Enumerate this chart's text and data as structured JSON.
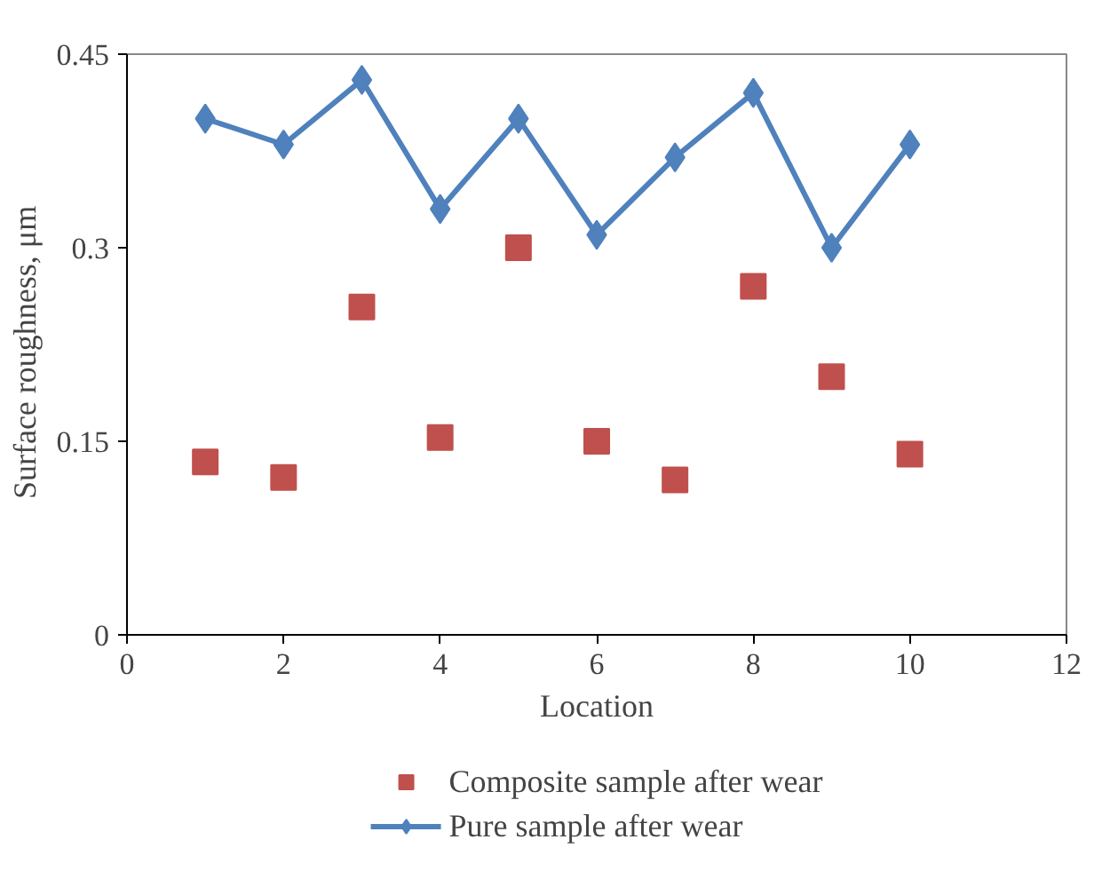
{
  "chart_data": {
    "type": "scatter",
    "xlabel": "Location",
    "ylabel": "Surface  roughness,  μm",
    "x": [
      1,
      2,
      3,
      4,
      5,
      6,
      7,
      8,
      9,
      10
    ],
    "series": [
      {
        "name": "Composite sample after wear",
        "marker": "square",
        "color": "#c0504d",
        "values": [
          0.134,
          0.122,
          0.254,
          0.153,
          0.3,
          0.15,
          0.12,
          0.27,
          0.2,
          0.14
        ]
      },
      {
        "name": "Pure sample after wear",
        "type": "line",
        "marker": "diamond",
        "color": "#4f81bd",
        "values": [
          0.4,
          0.38,
          0.43,
          0.33,
          0.4,
          0.31,
          0.37,
          0.42,
          0.3,
          0.38
        ]
      }
    ],
    "xlim": [
      0,
      12
    ],
    "xticks": [
      0,
      2,
      4,
      6,
      8,
      10,
      12
    ],
    "ylim": [
      0,
      0.45
    ],
    "yticks": [
      0,
      {
        "value": 0.15,
        "label": "0.15"
      },
      {
        "value": 0.3,
        "label": "0.3"
      },
      {
        "value": 0.45,
        "label": "0.45"
      }
    ],
    "grid": false,
    "legend": "bottom"
  }
}
